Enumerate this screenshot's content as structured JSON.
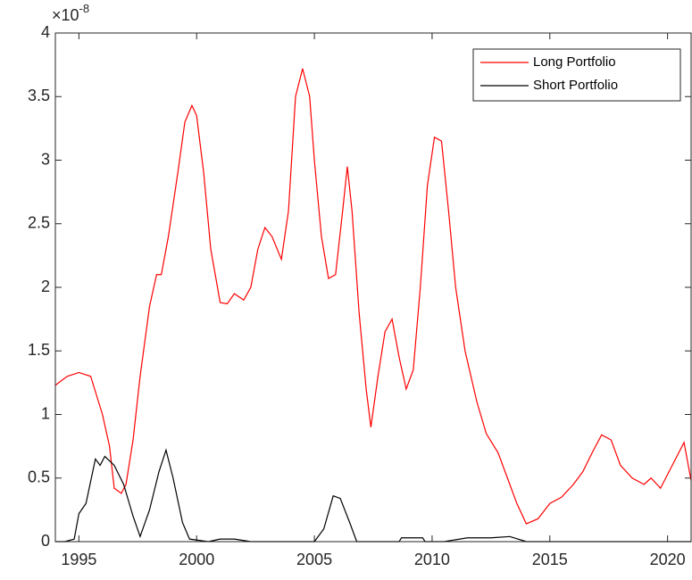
{
  "chart_data": {
    "type": "line",
    "axis_multiplier": {
      "base": "×10",
      "exponent": "-8"
    },
    "xlim": [
      1994,
      2021
    ],
    "xticks": [
      1995,
      2000,
      2005,
      2010,
      2015,
      2020
    ],
    "ylim": [
      0,
      4
    ],
    "yticks": [
      0,
      0.5,
      1,
      1.5,
      2,
      2.5,
      3,
      3.5,
      4
    ],
    "grid": false,
    "legend_position": "top-right",
    "series": [
      {
        "name": "Long Portfolio",
        "color": "#ff0000",
        "x": [
          1994.0,
          1994.5,
          1995.0,
          1995.5,
          1996.0,
          1996.3,
          1996.5,
          1996.8,
          1997.0,
          1997.3,
          1997.6,
          1998.0,
          1998.3,
          1998.5,
          1998.8,
          1999.2,
          1999.5,
          1999.8,
          2000.0,
          2000.3,
          2000.6,
          2001.0,
          2001.3,
          2001.6,
          2002.0,
          2002.3,
          2002.6,
          2002.9,
          2003.2,
          2003.6,
          2003.9,
          2004.2,
          2004.5,
          2004.8,
          2005.0,
          2005.3,
          2005.6,
          2005.9,
          2006.2,
          2006.4,
          2006.6,
          2006.9,
          2007.2,
          2007.4,
          2007.7,
          2008.0,
          2008.3,
          2008.6,
          2008.9,
          2009.2,
          2009.5,
          2009.8,
          2010.1,
          2010.4,
          2010.7,
          2011.0,
          2011.4,
          2011.9,
          2012.3,
          2012.8,
          2013.2,
          2013.6,
          2014.0,
          2014.5,
          2015.0,
          2015.5,
          2016.0,
          2016.4,
          2016.8,
          2017.2,
          2017.6,
          2018.0,
          2018.5,
          2019.0,
          2019.3,
          2019.7,
          2020.2,
          2020.7,
          2021.0
        ],
        "values": [
          1.23,
          1.3,
          1.33,
          1.3,
          1.0,
          0.75,
          0.42,
          0.38,
          0.45,
          0.8,
          1.3,
          1.85,
          2.1,
          2.1,
          2.4,
          2.9,
          3.3,
          3.43,
          3.35,
          2.9,
          2.3,
          1.88,
          1.87,
          1.95,
          1.9,
          2.0,
          2.3,
          2.47,
          2.4,
          2.22,
          2.6,
          3.5,
          3.72,
          3.5,
          3.0,
          2.4,
          2.07,
          2.1,
          2.6,
          2.95,
          2.6,
          1.8,
          1.2,
          0.9,
          1.3,
          1.65,
          1.75,
          1.45,
          1.2,
          1.35,
          2.0,
          2.8,
          3.18,
          3.15,
          2.6,
          2.0,
          1.5,
          1.1,
          0.85,
          0.7,
          0.5,
          0.3,
          0.14,
          0.18,
          0.3,
          0.35,
          0.45,
          0.55,
          0.7,
          0.84,
          0.8,
          0.6,
          0.5,
          0.45,
          0.5,
          0.42,
          0.6,
          0.78,
          0.48
        ]
      },
      {
        "name": "Short Portfolio",
        "color": "#000000",
        "x": [
          1994.0,
          1994.4,
          1994.8,
          1995.0,
          1995.3,
          1995.7,
          1995.9,
          1996.1,
          1996.5,
          1996.9,
          1997.3,
          1997.6,
          1998.0,
          1998.4,
          1998.7,
          1999.0,
          1999.4,
          1999.7,
          2000.5,
          2001.0,
          2001.6,
          2002.3,
          2005.0,
          2005.4,
          2005.8,
          2006.1,
          2006.5,
          2006.8,
          2008.6,
          2008.7,
          2009.6,
          2009.7,
          2010.5,
          2011.5,
          2012.5,
          2013.3,
          2014.0,
          2021.0
        ],
        "values": [
          0,
          0,
          0.02,
          0.22,
          0.3,
          0.65,
          0.6,
          0.67,
          0.6,
          0.45,
          0.2,
          0.04,
          0.25,
          0.55,
          0.72,
          0.5,
          0.15,
          0.02,
          0,
          0.02,
          0.02,
          0,
          0,
          0.1,
          0.36,
          0.34,
          0.15,
          0,
          0,
          0.03,
          0.03,
          0,
          0,
          0.03,
          0.03,
          0.04,
          0,
          0
        ]
      }
    ]
  }
}
